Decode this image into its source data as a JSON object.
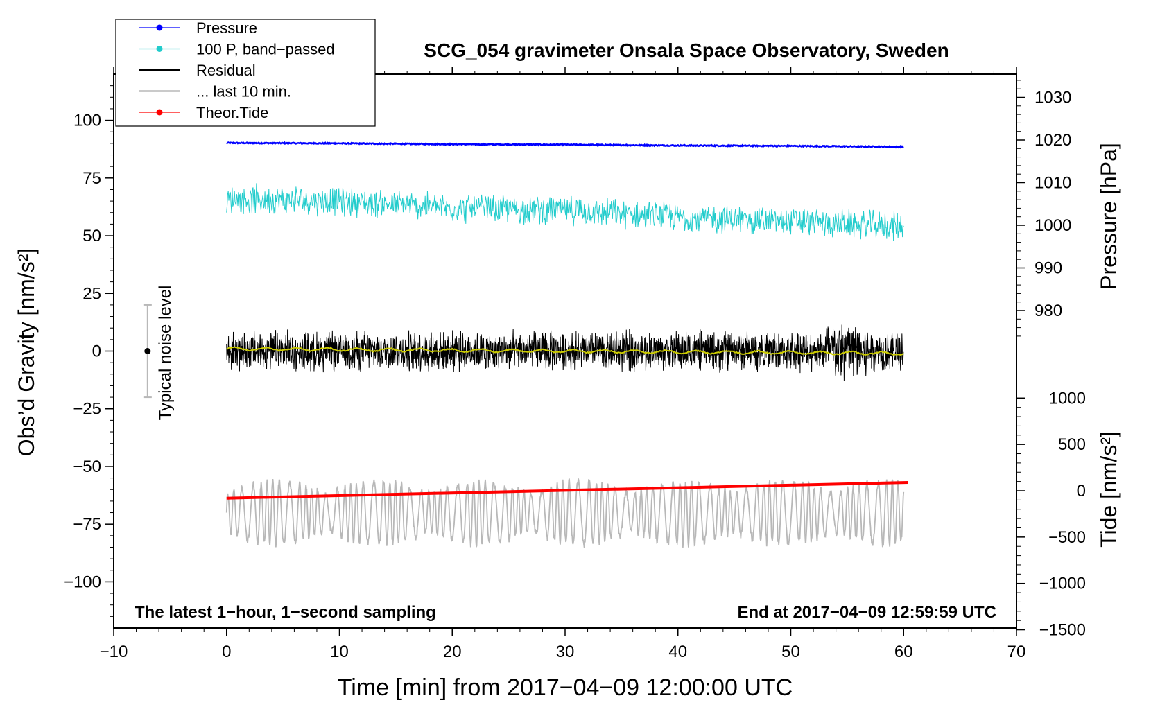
{
  "chart_data": {
    "type": "line",
    "title": "SCG_054 gravimeter Onsala Space Observatory, Sweden",
    "xlabel": "Time [min] from 2017−04−09 12:00:00 UTC",
    "ylabel_left": "Obs’d Gravity [nm/s²]",
    "ylabel_right_top": "Pressure [hPa]",
    "ylabel_right_bottom": "Tide [nm/s²]",
    "xlim": [
      -10,
      70
    ],
    "ylim": [
      -120,
      120
    ],
    "x_ticks": [
      "−10",
      "0",
      "10",
      "20",
      "30",
      "40",
      "50",
      "60",
      "70"
    ],
    "y_ticks": [
      "100",
      "75",
      "50",
      "25",
      "0",
      "−25",
      "−50",
      "−75",
      "−100"
    ],
    "pressure_axis": {
      "ticks": [
        "1030",
        "1020",
        "1010",
        "1000",
        "990",
        "980"
      ]
    },
    "tide_axis": {
      "ticks": [
        "1000",
        "500",
        "0",
        "−500",
        "−1000",
        "−1500"
      ]
    },
    "legend": {
      "position": "top-left",
      "entries": [
        {
          "label": "Pressure",
          "color": "#0000ff",
          "marker": true
        },
        {
          "label": "100 P, band−passed",
          "color": "#22cccc",
          "marker": true
        },
        {
          "label": "Residual",
          "color": "#000000",
          "marker": false
        },
        {
          "label": "... last 10 min.",
          "color": "#b8b8b8",
          "marker": false
        },
        {
          "label": "Theor.Tide",
          "color": "#ff0000",
          "marker": true
        }
      ]
    },
    "annotations": {
      "noise_label": "Typical noise level",
      "noise_bar": {
        "x": -7,
        "center": 0,
        "half_range": 20
      },
      "bottom_left": "The latest 1−hour, 1−second sampling",
      "bottom_right": "End at 2017−04−09 12:59:59 UTC"
    },
    "series": [
      {
        "name": "Pressure",
        "axis": "pressure_hPa",
        "color": "#0000ff",
        "x": [
          0,
          10,
          20,
          30,
          40,
          50,
          60
        ],
        "values": [
          1019.3,
          1019.2,
          1019.0,
          1018.9,
          1018.7,
          1018.6,
          1018.4
        ],
        "noise_hPa": 0.25
      },
      {
        "name": "100 P, band−passed",
        "axis": "gravity",
        "color": "#22cccc",
        "x": [
          0,
          10,
          20,
          30,
          40,
          50,
          60
        ],
        "values": [
          66,
          65,
          62,
          61,
          58,
          56,
          54
        ],
        "noise_amplitude": 6
      },
      {
        "name": "Residual",
        "axis": "gravity",
        "color": "#000000",
        "x": [
          0,
          60
        ],
        "values": [
          0,
          0
        ],
        "noise_amplitude": 7
      },
      {
        "name": "Residual, smoothed",
        "axis": "gravity",
        "color": "#cccc00",
        "x": [
          0,
          60
        ],
        "values": [
          1,
          -1
        ],
        "noise_amplitude": 0.6
      },
      {
        "name": "... last 10 min.",
        "axis": "gravity",
        "color": "#b8b8b8",
        "x": [
          0,
          60
        ],
        "values": [
          -70,
          -70
        ],
        "noise_amplitude": 11
      },
      {
        "name": "Theor.Tide",
        "axis": "tide",
        "color": "#ff0000",
        "x": [
          0,
          60.4
        ],
        "values": [
          -80,
          90
        ]
      }
    ]
  }
}
